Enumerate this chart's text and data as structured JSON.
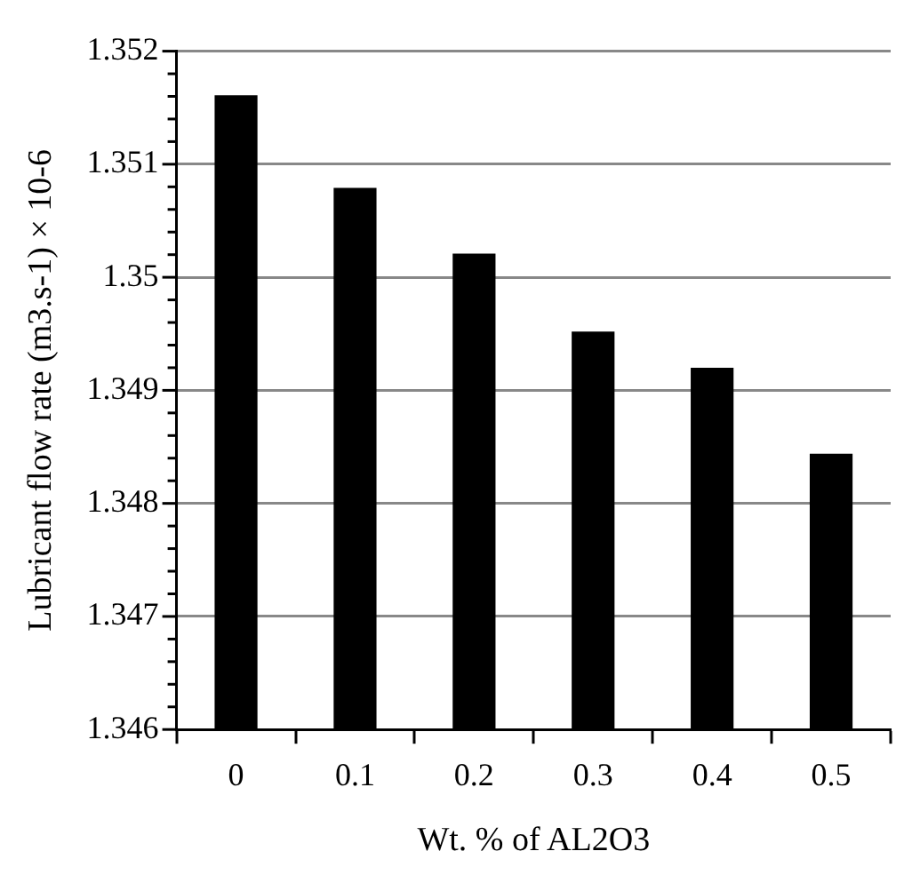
{
  "chart_data": {
    "type": "bar",
    "xlabel": "Wt. % of AL2O3",
    "ylabel": "Lubricant flow rate (m3.s-1) × 10-6",
    "categories": [
      "0",
      "0.1",
      "0.2",
      "0.3",
      "0.4",
      "0.5"
    ],
    "values": [
      1.35161,
      1.35079,
      1.35021,
      1.34952,
      1.3492,
      1.34844
    ],
    "color": "#000000",
    "ylim": [
      1.346,
      1.352
    ],
    "yticks": [
      1.346,
      {
        "value": 1.3462,
        "label": null
      },
      {
        "value": 1.3464,
        "label": null
      },
      {
        "value": 1.3466,
        "label": null
      },
      {
        "value": 1.3468,
        "label": null
      },
      1.347,
      {
        "value": 1.3472,
        "label": null
      },
      {
        "value": 1.3474,
        "label": null
      },
      {
        "value": 1.3476,
        "label": null
      },
      {
        "value": 1.3478,
        "label": null
      },
      1.348,
      {
        "value": 1.3482,
        "label": null
      },
      {
        "value": 1.3484,
        "label": null
      },
      {
        "value": 1.3486,
        "label": null
      },
      {
        "value": 1.3488,
        "label": null
      },
      1.349,
      {
        "value": 1.3492,
        "label": null
      },
      {
        "value": 1.3494,
        "label": null
      },
      {
        "value": 1.3496,
        "label": null
      },
      {
        "value": 1.3498,
        "label": null
      },
      1.35,
      {
        "value": 1.3502,
        "label": null
      },
      {
        "value": 1.3504,
        "label": null
      },
      {
        "value": 1.3506,
        "label": null
      },
      {
        "value": 1.3508,
        "label": null
      },
      1.351,
      {
        "value": 1.3512,
        "label": null
      },
      {
        "value": 1.3514,
        "label": null
      },
      {
        "value": 1.3516,
        "label": null
      },
      {
        "value": 1.3518,
        "label": null
      },
      1.352
    ],
    "grid": "y"
  }
}
